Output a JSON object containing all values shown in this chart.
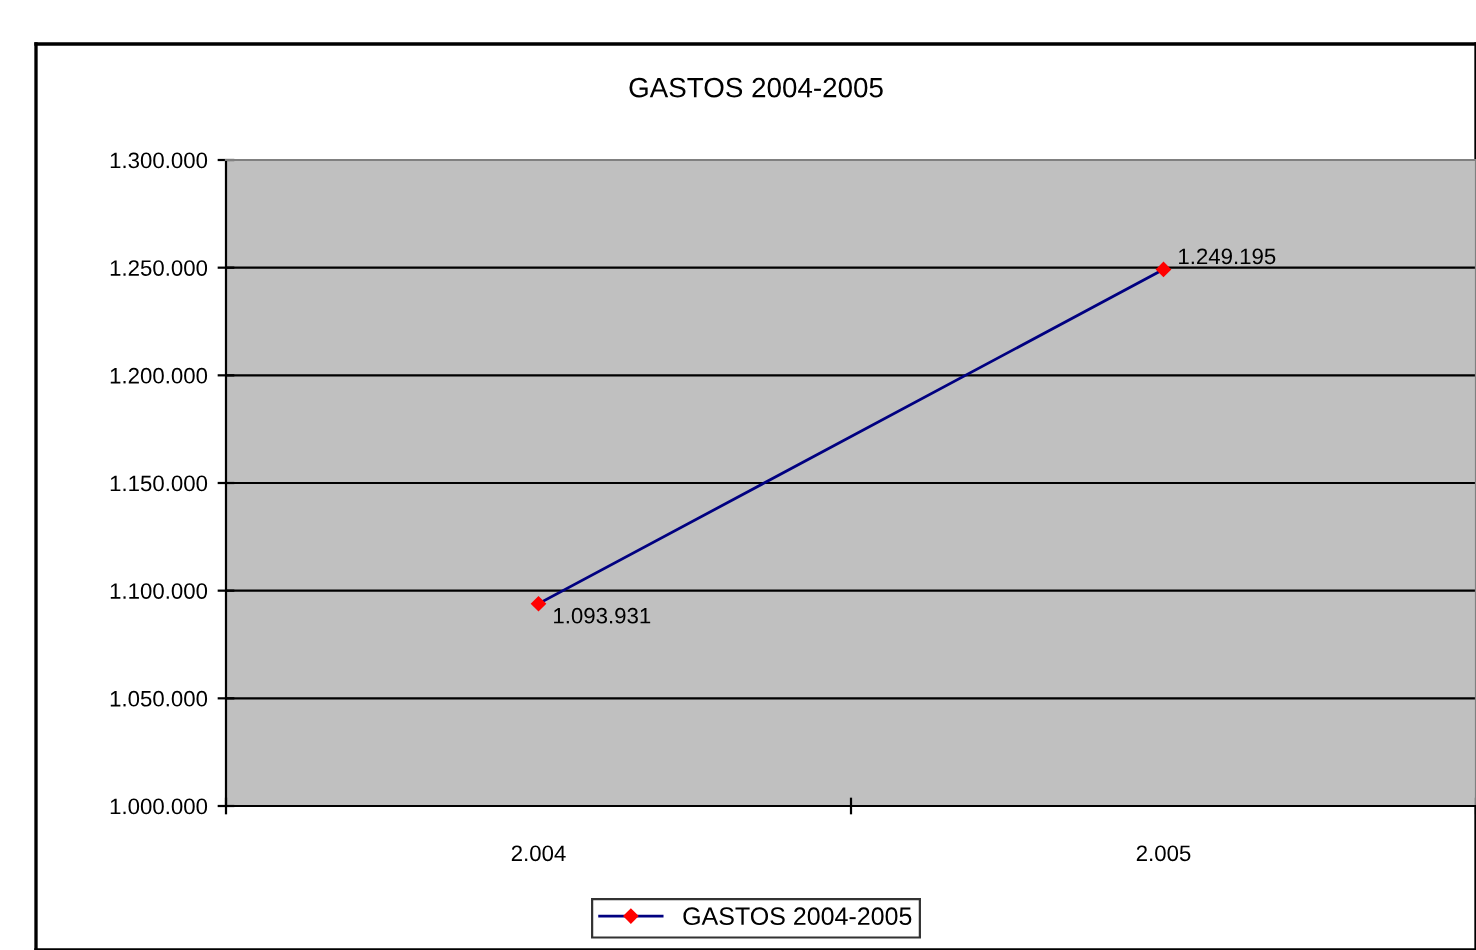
{
  "chart_data": {
    "type": "line",
    "title": "GASTOS 2004-2005",
    "categories": [
      "2.004",
      "2.005"
    ],
    "series": [
      {
        "name": "GASTOS 2004-2005",
        "color": "#000080",
        "values": [
          1093931,
          1249195
        ],
        "value_labels": [
          "1.093.931",
          "1.249.195"
        ]
      }
    ],
    "ylim": [
      1000000,
      1300000
    ],
    "yticks": [
      {
        "value": 1000000,
        "label": "1.000.000"
      },
      {
        "value": 1050000,
        "label": "1.050.000"
      },
      {
        "value": 1100000,
        "label": "1.100.000"
      },
      {
        "value": 1150000,
        "label": "1.150.000"
      },
      {
        "value": 1200000,
        "label": "1.200.000"
      },
      {
        "value": 1250000,
        "label": "1.250.000"
      },
      {
        "value": 1300000,
        "label": "1.300.000"
      }
    ],
    "grid": "y",
    "legend": "bottom",
    "marker": "diamond",
    "line_style": "solid"
  }
}
